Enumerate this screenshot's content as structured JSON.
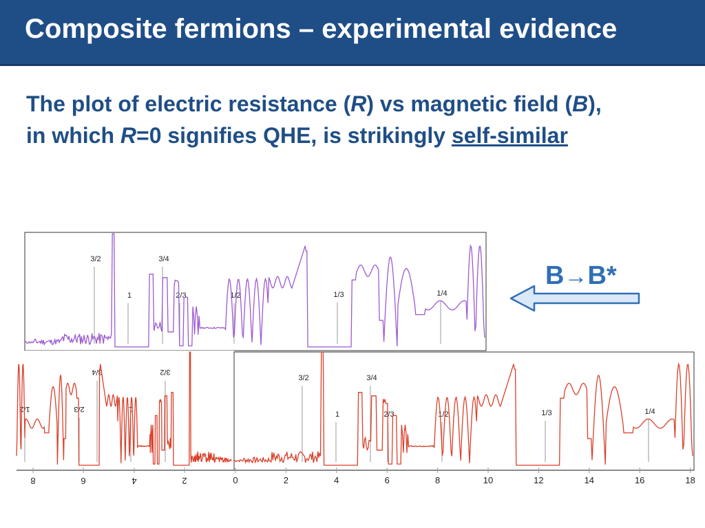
{
  "slide": {
    "title": "Composite fermions – experimental evidence",
    "line1": [
      "The plot of electric resistance (",
      "R",
      ") vs magnetic field (",
      "B",
      "),"
    ],
    "line2": [
      "in which ",
      "R",
      "=0 signifies QHE, is strikingly ",
      "self-similar"
    ],
    "mapping": {
      "from": "B",
      "arrow": "→",
      "to": "B*"
    },
    "colors": {
      "header_bg": "#1f4e87",
      "text": "#1f4e87",
      "purple": "#9b59d0",
      "red": "#d9402b",
      "arrow": "#2f6fb6"
    }
  },
  "figure": {
    "top_labels": [
      "3/2",
      "3/4",
      "1",
      "2/3",
      "1/2",
      "1/3",
      "1/4"
    ],
    "right_labels": [
      "3/2",
      "3/4",
      "1",
      "2/3",
      "1/2",
      "1/3",
      "1/4"
    ],
    "left_labels": [
      "1/2",
      "2/3",
      "3/4",
      "1",
      "3/2"
    ],
    "left_ticks": [
      "8",
      "6",
      "4",
      "2"
    ],
    "right_ticks": [
      "0",
      "2",
      "4",
      "6",
      "8",
      "10",
      "12",
      "14",
      "16",
      "18"
    ]
  }
}
